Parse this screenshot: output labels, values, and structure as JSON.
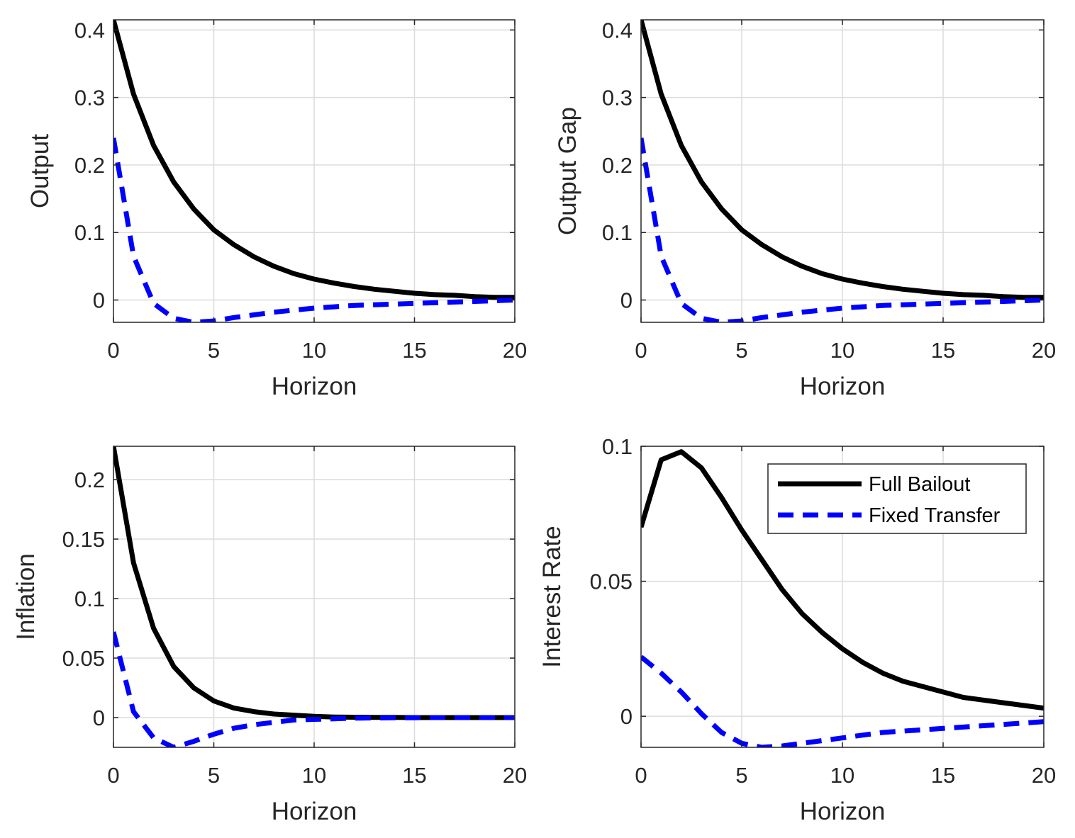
{
  "chart_data": [
    {
      "type": "line",
      "xlabel": "Horizon",
      "ylabel": "Output",
      "xlim": [
        0,
        20
      ],
      "ylim": [
        -0.033,
        0.415
      ],
      "xticks": [
        0,
        5,
        10,
        15,
        20
      ],
      "xtick_labels": [
        "0",
        "5",
        "10",
        "15",
        "20"
      ],
      "yticks": [
        0,
        0.1,
        0.2,
        0.3,
        0.4
      ],
      "ytick_labels": [
        "0",
        "0.1",
        "0.2",
        "0.3",
        "0.4"
      ],
      "grid": true,
      "x": [
        0,
        1,
        2,
        3,
        4,
        5,
        6,
        7,
        8,
        9,
        10,
        11,
        12,
        13,
        14,
        15,
        16,
        17,
        18,
        19,
        20
      ],
      "series": [
        {
          "name": "Full Bailout",
          "color": "#000000",
          "style": "solid",
          "values": [
            0.415,
            0.305,
            0.229,
            0.175,
            0.135,
            0.104,
            0.082,
            0.064,
            0.05,
            0.039,
            0.031,
            0.025,
            0.02,
            0.016,
            0.013,
            0.01,
            0.008,
            0.007,
            0.005,
            0.004,
            0.004
          ]
        },
        {
          "name": "Fixed Transfer",
          "color": "#0000ff",
          "style": "dashed",
          "values": [
            0.24,
            0.065,
            -0.005,
            -0.027,
            -0.033,
            -0.031,
            -0.026,
            -0.022,
            -0.018,
            -0.015,
            -0.012,
            -0.01,
            -0.008,
            -0.007,
            -0.006,
            -0.005,
            -0.004,
            -0.003,
            -0.002,
            -0.001,
            0.0
          ]
        }
      ]
    },
    {
      "type": "line",
      "xlabel": "Horizon",
      "ylabel": "Output Gap",
      "xlim": [
        0,
        20
      ],
      "ylim": [
        -0.033,
        0.415
      ],
      "xticks": [
        0,
        5,
        10,
        15,
        20
      ],
      "xtick_labels": [
        "0",
        "5",
        "10",
        "15",
        "20"
      ],
      "yticks": [
        0,
        0.1,
        0.2,
        0.3,
        0.4
      ],
      "ytick_labels": [
        "0",
        "0.1",
        "0.2",
        "0.3",
        "0.4"
      ],
      "grid": true,
      "x": [
        0,
        1,
        2,
        3,
        4,
        5,
        6,
        7,
        8,
        9,
        10,
        11,
        12,
        13,
        14,
        15,
        16,
        17,
        18,
        19,
        20
      ],
      "series": [
        {
          "name": "Full Bailout",
          "color": "#000000",
          "style": "solid",
          "values": [
            0.415,
            0.305,
            0.229,
            0.175,
            0.135,
            0.104,
            0.082,
            0.064,
            0.05,
            0.039,
            0.031,
            0.025,
            0.02,
            0.016,
            0.013,
            0.01,
            0.008,
            0.007,
            0.005,
            0.004,
            0.004
          ]
        },
        {
          "name": "Fixed Transfer",
          "color": "#0000ff",
          "style": "dashed",
          "values": [
            0.24,
            0.065,
            -0.005,
            -0.027,
            -0.033,
            -0.031,
            -0.026,
            -0.022,
            -0.018,
            -0.015,
            -0.012,
            -0.01,
            -0.008,
            -0.007,
            -0.006,
            -0.005,
            -0.004,
            -0.003,
            -0.002,
            -0.001,
            0.0
          ]
        }
      ]
    },
    {
      "type": "line",
      "xlabel": "Horizon",
      "ylabel": "Inflation",
      "xlim": [
        0,
        20
      ],
      "ylim": [
        -0.025,
        0.228
      ],
      "xticks": [
        0,
        5,
        10,
        15,
        20
      ],
      "xtick_labels": [
        "0",
        "5",
        "10",
        "15",
        "20"
      ],
      "yticks": [
        0,
        0.05,
        0.1,
        0.15,
        0.2
      ],
      "ytick_labels": [
        "0",
        "0.05",
        "0.1",
        "0.15",
        "0.2"
      ],
      "grid": true,
      "x": [
        0,
        1,
        2,
        3,
        4,
        5,
        6,
        7,
        8,
        9,
        10,
        11,
        12,
        13,
        14,
        15,
        16,
        17,
        18,
        19,
        20
      ],
      "series": [
        {
          "name": "Full Bailout",
          "color": "#000000",
          "style": "solid",
          "values": [
            0.228,
            0.13,
            0.075,
            0.043,
            0.025,
            0.014,
            0.008,
            0.005,
            0.003,
            0.002,
            0.001,
            0.0005,
            0.0003,
            0.0002,
            0.0001,
            0,
            0,
            0,
            0,
            0,
            0
          ]
        },
        {
          "name": "Fixed Transfer",
          "color": "#0000ff",
          "style": "dashed",
          "values": [
            0.072,
            0.005,
            -0.017,
            -0.025,
            -0.02,
            -0.014,
            -0.009,
            -0.006,
            -0.004,
            -0.002,
            -0.0015,
            -0.001,
            -0.0005,
            -0.0003,
            -0.0002,
            -0.0001,
            0,
            0,
            0,
            0,
            0
          ]
        }
      ]
    },
    {
      "type": "line",
      "xlabel": "Horizon",
      "ylabel": "Interest Rate",
      "xlim": [
        0,
        20
      ],
      "ylim": [
        -0.0115,
        0.1
      ],
      "xticks": [
        0,
        5,
        10,
        15,
        20
      ],
      "xtick_labels": [
        "0",
        "5",
        "10",
        "15",
        "20"
      ],
      "yticks": [
        0,
        0.05,
        0.1
      ],
      "ytick_labels": [
        "0",
        "0.05",
        "0.1"
      ],
      "grid": true,
      "legend": "top-right",
      "x": [
        0,
        1,
        2,
        3,
        4,
        5,
        6,
        7,
        8,
        9,
        10,
        11,
        12,
        13,
        14,
        15,
        16,
        17,
        18,
        19,
        20
      ],
      "series": [
        {
          "name": "Full Bailout",
          "color": "#000000",
          "style": "solid",
          "values": [
            0.07,
            0.095,
            0.098,
            0.092,
            0.081,
            0.069,
            0.058,
            0.047,
            0.038,
            0.031,
            0.025,
            0.02,
            0.016,
            0.013,
            0.011,
            0.009,
            0.007,
            0.006,
            0.005,
            0.004,
            0.003
          ]
        },
        {
          "name": "Fixed Transfer",
          "color": "#0000ff",
          "style": "dashed",
          "values": [
            0.022,
            0.016,
            0.009,
            0.001,
            -0.006,
            -0.01,
            -0.0115,
            -0.011,
            -0.01,
            -0.009,
            -0.008,
            -0.007,
            -0.006,
            -0.0055,
            -0.005,
            -0.0045,
            -0.004,
            -0.0035,
            -0.003,
            -0.0025,
            -0.002
          ]
        }
      ]
    }
  ]
}
